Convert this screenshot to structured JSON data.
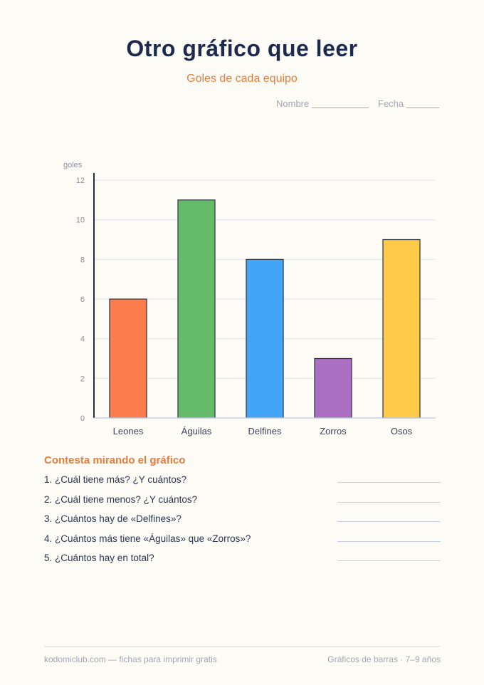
{
  "header": {
    "title": "Otro gráfico que leer",
    "subtitle": "Goles de cada equipo",
    "name_label": "Nombre",
    "date_label": "Fecha"
  },
  "chart_data": {
    "type": "bar",
    "title": "Goles de cada equipo",
    "ylabel": "goles",
    "xlabel": "",
    "categories": [
      "Leones",
      "Águilas",
      "Delfines",
      "Zorros",
      "Osos"
    ],
    "values": [
      6,
      11,
      8,
      3,
      9
    ],
    "colors": [
      "#ff7d4c",
      "#66bb6a",
      "#42a5f5",
      "#ab6fc2",
      "#ffca47"
    ],
    "ylim": [
      0,
      12
    ],
    "yticks": [
      0,
      2,
      4,
      6,
      8,
      10,
      12
    ],
    "grid": true
  },
  "questions": {
    "heading": "Contesta mirando el gráfico",
    "items": [
      "1. ¿Cuál tiene más? ¿Y cuántos?",
      "2. ¿Cuál tiene menos? ¿Y cuántos?",
      "3. ¿Cuántos hay de «Delfines»?",
      "4. ¿Cuántos más tiene «Águilas» que «Zorros»?",
      "5. ¿Cuántos hay en total?"
    ]
  },
  "footer": {
    "left": "kodomiclub.com — fichas para imprimir gratis",
    "right": "Gráficos de barras · 7–9 años"
  }
}
